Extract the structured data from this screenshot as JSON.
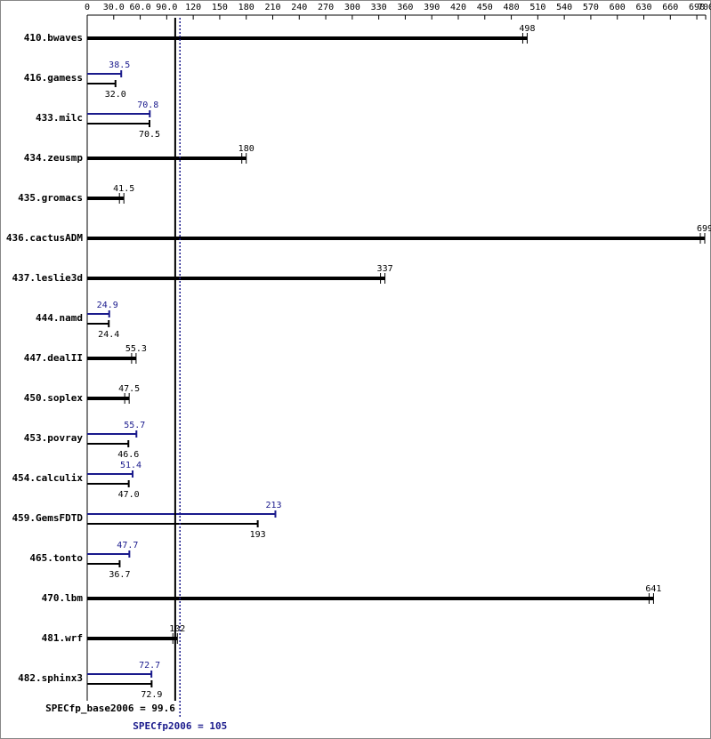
{
  "chart_data": {
    "type": "bar",
    "orientation": "horizontal",
    "categories": [
      "410.bwaves",
      "416.gamess",
      "433.milc",
      "434.zeusmp",
      "435.gromacs",
      "436.cactusADM",
      "437.leslie3d",
      "444.namd",
      "447.dealII",
      "450.soplex",
      "453.povray",
      "454.calculix",
      "459.GemsFDTD",
      "465.tonto",
      "470.lbm",
      "481.wrf",
      "482.sphinx3"
    ],
    "series": [
      {
        "color": "#000000",
        "values": [
          498,
          32,
          70.5,
          180,
          41.5,
          699,
          337,
          24.4,
          55.3,
          47.5,
          46.6,
          47,
          193,
          36.7,
          641,
          102,
          72.9
        ],
        "value_labels": [
          "498",
          "32.0",
          "70.5",
          "180",
          "41.5",
          "699",
          "337",
          "24.4",
          "55.3",
          "47.5",
          "46.6",
          "47.0",
          "193",
          "36.7",
          "641",
          "102",
          "72.9"
        ]
      },
      {
        "color": "#1a1a8c",
        "values": [
          null,
          38.5,
          70.8,
          null,
          null,
          null,
          null,
          24.9,
          null,
          null,
          55.7,
          51.4,
          213,
          47.7,
          null,
          null,
          72.7
        ]
      }
    ],
    "xlim": [
      0,
      700
    ],
    "xticks": [
      0,
      {
        "value": 30,
        "label": "30.0"
      },
      {
        "value": 60,
        "label": "60.0"
      },
      {
        "value": 90,
        "label": "90.0"
      },
      120,
      150,
      180,
      210,
      240,
      270,
      300,
      330,
      360,
      390,
      420,
      450,
      480,
      510,
      540,
      570,
      600,
      630,
      660,
      690,
      700
    ],
    "reference_lines": [
      {
        "label": "SPECfp_base2006 = 99.6",
        "value": 99.6,
        "color": "#000000"
      },
      {
        "label": "SPECfp2006 = 105",
        "value": 105,
        "color": "#1a1a8c"
      }
    ]
  }
}
